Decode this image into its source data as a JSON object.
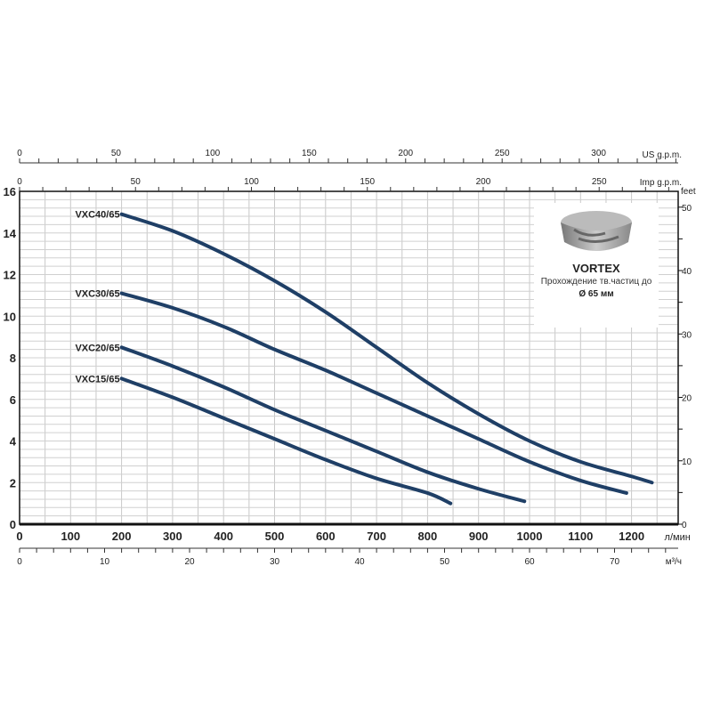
{
  "chart_data": {
    "type": "line",
    "xlabel": "л/мин",
    "ylabel": "",
    "xlim": [
      0,
      1290
    ],
    "ylim": [
      0,
      16
    ],
    "x_ticks": [
      0,
      100,
      200,
      300,
      400,
      500,
      600,
      700,
      800,
      900,
      1000,
      1100,
      1200
    ],
    "y_ticks": [
      0,
      2,
      4,
      6,
      8,
      10,
      12,
      14,
      16
    ],
    "grid": true,
    "secondary_axes": {
      "us_gpm": {
        "label": "US g.p.m.",
        "ticks": [
          0,
          50,
          100,
          150,
          200,
          250,
          300
        ]
      },
      "imp_gpm": {
        "label": "Imp g.p.m.",
        "ticks": [
          0,
          50,
          100,
          150,
          200,
          250
        ]
      },
      "feet": {
        "label": "feet",
        "ticks": [
          0,
          10,
          20,
          30,
          40,
          50
        ]
      },
      "m3h": {
        "label": "м³/ч",
        "ticks": [
          0,
          10,
          20,
          30,
          40,
          50,
          60,
          70
        ]
      }
    },
    "series": [
      {
        "name": "VXC40/65",
        "color": "#1f3f66",
        "x": [
          200,
          300,
          400,
          500,
          600,
          700,
          800,
          900,
          1000,
          1100,
          1200,
          1240
        ],
        "y": [
          14.9,
          14.1,
          13.0,
          11.7,
          10.2,
          8.5,
          6.8,
          5.3,
          4.0,
          3.0,
          2.3,
          2.0
        ]
      },
      {
        "name": "VXC30/65",
        "color": "#1f3f66",
        "x": [
          200,
          300,
          400,
          500,
          600,
          700,
          800,
          900,
          1000,
          1100,
          1190
        ],
        "y": [
          11.1,
          10.4,
          9.5,
          8.4,
          7.4,
          6.3,
          5.2,
          4.1,
          3.0,
          2.1,
          1.5
        ]
      },
      {
        "name": "VXC20/65",
        "color": "#1f3f66",
        "x": [
          200,
          300,
          400,
          500,
          600,
          700,
          800,
          900,
          990
        ],
        "y": [
          8.5,
          7.6,
          6.6,
          5.5,
          4.5,
          3.5,
          2.5,
          1.7,
          1.1
        ]
      },
      {
        "name": "VXC15/65",
        "color": "#1f3f66",
        "x": [
          200,
          300,
          400,
          500,
          600,
          700,
          800,
          845
        ],
        "y": [
          7.0,
          6.1,
          5.1,
          4.1,
          3.1,
          2.2,
          1.5,
          1.0
        ]
      }
    ]
  },
  "info": {
    "title": "VORTEX",
    "subtitle": "Прохождение тв.частиц до",
    "diameter": "Ø 65 мм",
    "icon": "impeller-image"
  }
}
